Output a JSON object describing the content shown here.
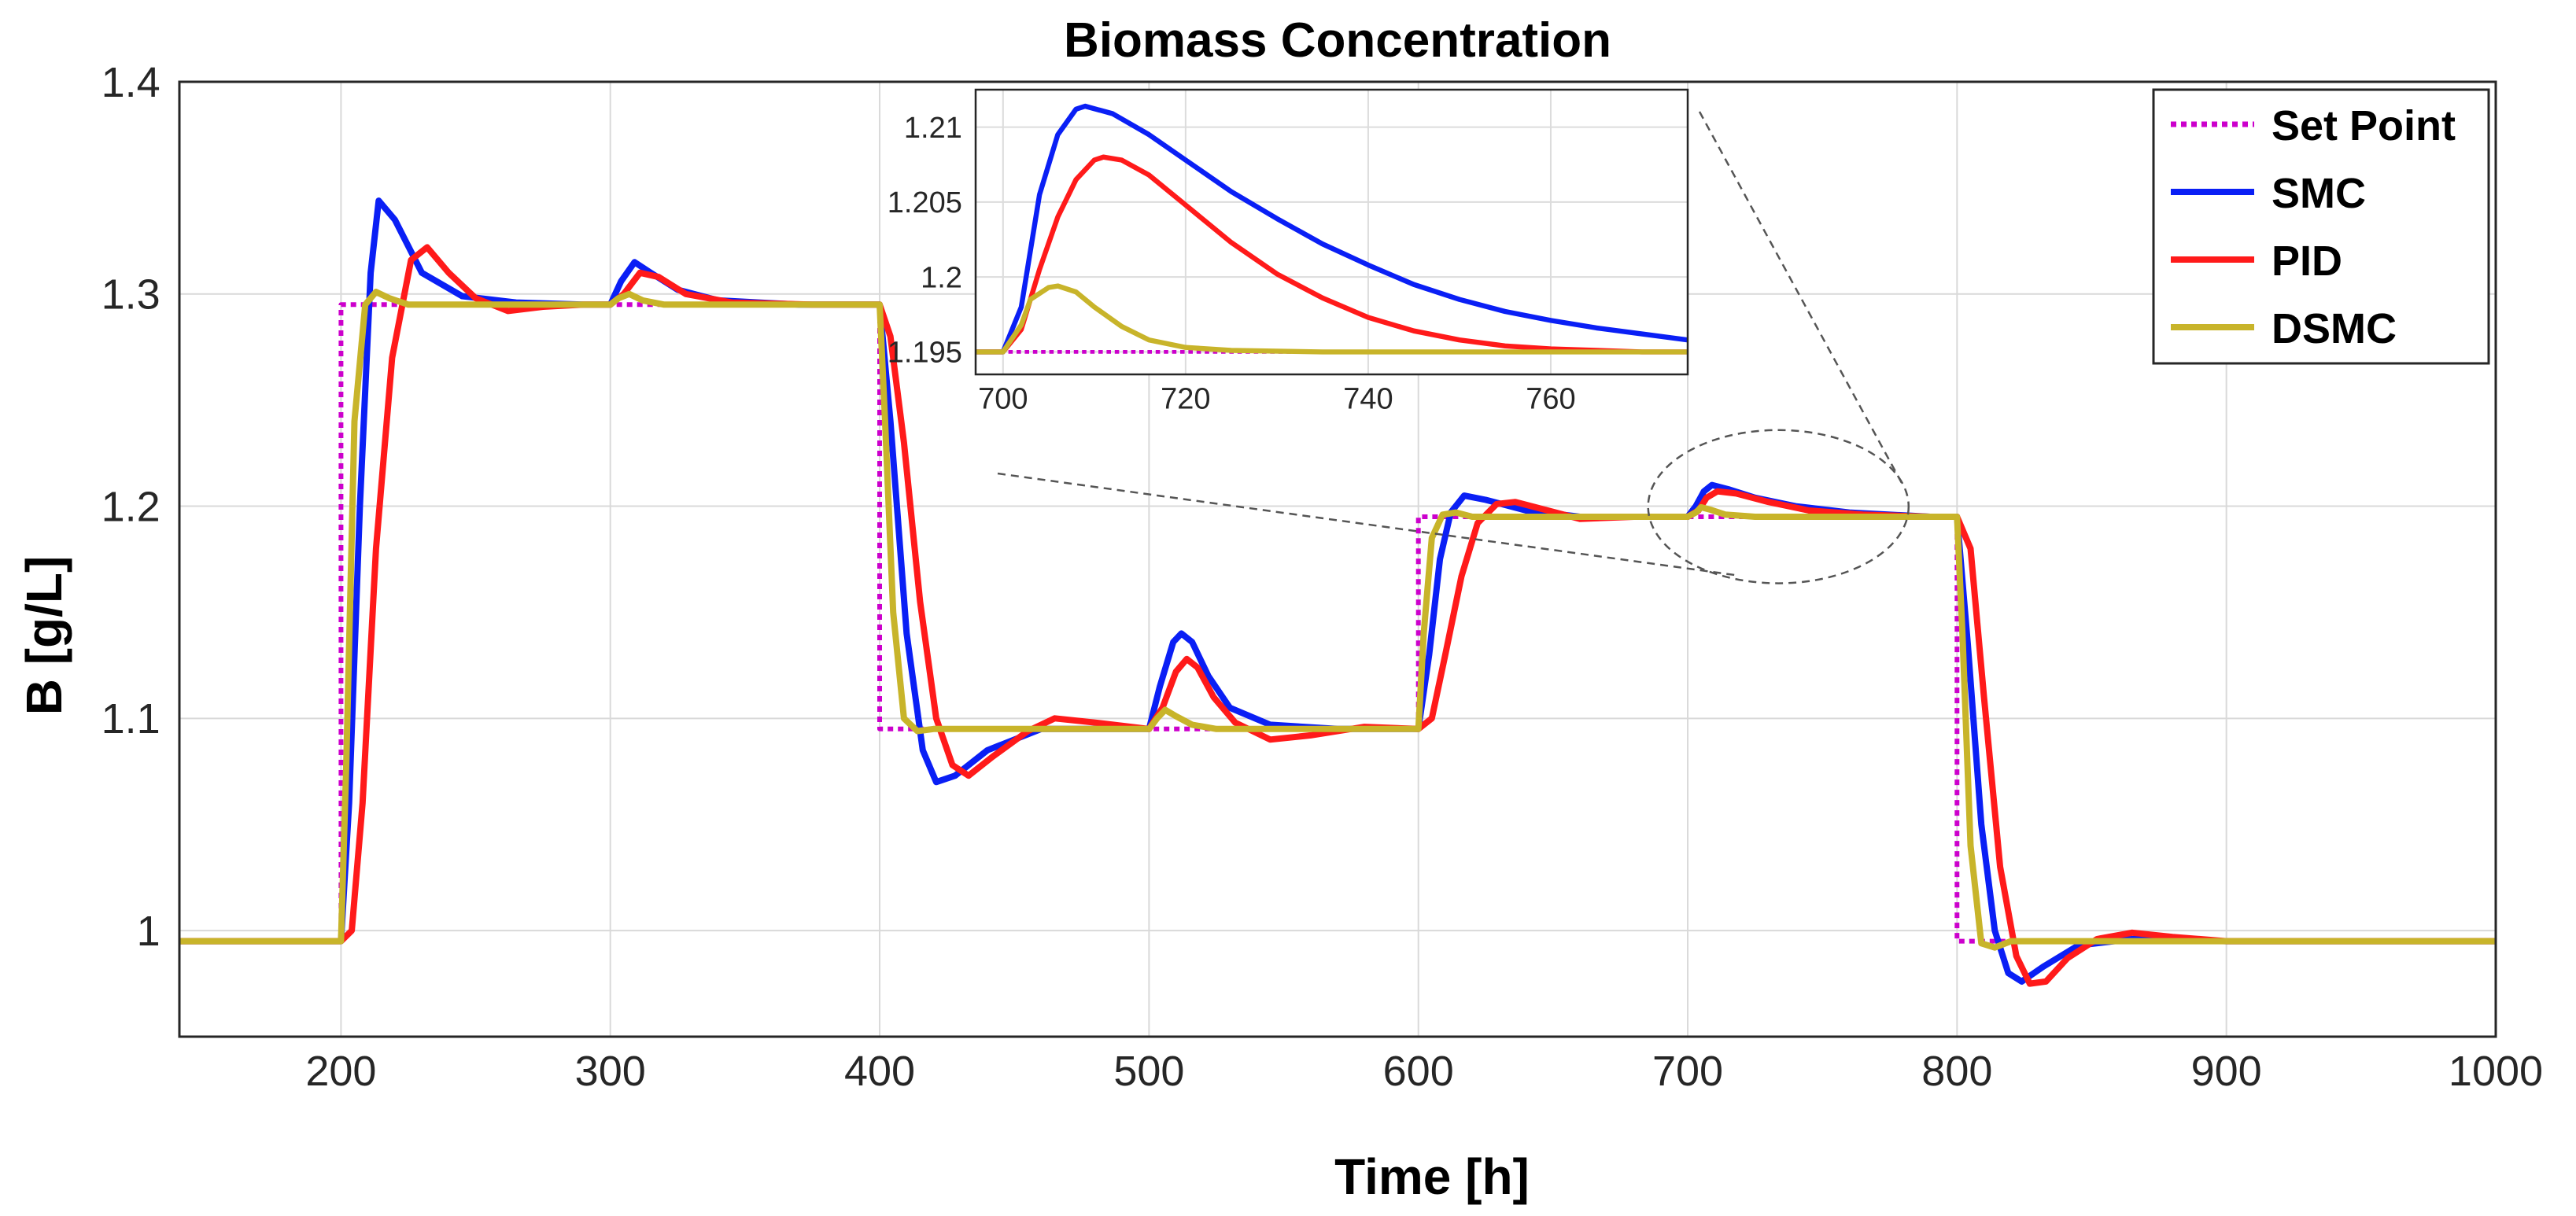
{
  "chart_data": {
    "type": "line",
    "title": "Biomass Concentration",
    "xlabel": "Time [h]",
    "ylabel": "B [g/L]",
    "xlim": [
      140,
      1000
    ],
    "ylim": [
      0.95,
      1.4
    ],
    "xticks": [
      200,
      300,
      400,
      500,
      600,
      700,
      800,
      900,
      1000
    ],
    "xtick_labels": [
      "200",
      "300",
      "400",
      "500",
      "600",
      "700",
      "800",
      "900",
      "1000"
    ],
    "yticks": [
      1.0,
      1.1,
      1.2,
      1.3,
      1.4
    ],
    "ytick_labels": [
      "1",
      "1.1",
      "1.2",
      "1.3",
      "1.4"
    ],
    "grid": true,
    "legend_position": "top-right",
    "colors": {
      "set_point": "#cc00cc",
      "smc": "#0a1ff5",
      "pid": "#ff1a1a",
      "dsmc": "#c8b42a"
    },
    "series": [
      {
        "name": "Set Point",
        "style": "dotted",
        "color": "#cc00cc",
        "x": [
          140,
          200,
          200,
          400,
          400,
          600,
          600,
          800,
          800,
          1000
        ],
        "y": [
          0.995,
          0.995,
          1.295,
          1.295,
          1.095,
          1.095,
          1.195,
          1.195,
          0.995,
          0.995
        ]
      },
      {
        "name": "SMC",
        "color": "#0a1ff5",
        "x": [
          140,
          200,
          203,
          207,
          211,
          214,
          220,
          230,
          245,
          265,
          290,
          300,
          304,
          309,
          315,
          325,
          340,
          370,
          400,
          404,
          410,
          416,
          421,
          428,
          440,
          460,
          480,
          500,
          504,
          509,
          512,
          516,
          522,
          530,
          545,
          570,
          600,
          604,
          608,
          612,
          617,
          625,
          640,
          660,
          680,
          700,
          703,
          706,
          709,
          715,
          725,
          740,
          760,
          790,
          800,
          804,
          809,
          814,
          819,
          824,
          832,
          845,
          865,
          900,
          1000
        ],
        "y": [
          0.995,
          0.995,
          1.06,
          1.2,
          1.31,
          1.344,
          1.335,
          1.31,
          1.299,
          1.296,
          1.295,
          1.295,
          1.306,
          1.315,
          1.31,
          1.302,
          1.297,
          1.295,
          1.295,
          1.24,
          1.14,
          1.085,
          1.07,
          1.073,
          1.085,
          1.095,
          1.095,
          1.095,
          1.115,
          1.136,
          1.14,
          1.136,
          1.12,
          1.105,
          1.097,
          1.095,
          1.095,
          1.13,
          1.175,
          1.197,
          1.205,
          1.203,
          1.198,
          1.195,
          1.195,
          1.195,
          1.2,
          1.207,
          1.21,
          1.208,
          1.204,
          1.2,
          1.197,
          1.195,
          1.195,
          1.135,
          1.05,
          1.0,
          0.98,
          0.976,
          0.983,
          0.993,
          0.996,
          0.995,
          0.995
        ]
      },
      {
        "name": "PID",
        "color": "#ff1a1a",
        "x": [
          140,
          200,
          204,
          208,
          213,
          219,
          226,
          232,
          240,
          250,
          262,
          275,
          290,
          300,
          305,
          311,
          318,
          328,
          345,
          375,
          400,
          404,
          409,
          415,
          421,
          427,
          433,
          442,
          455,
          465,
          480,
          500,
          505,
          510,
          514,
          518,
          524,
          532,
          545,
          560,
          580,
          600,
          605,
          610,
          616,
          622,
          629,
          636,
          645,
          660,
          680,
          700,
          704,
          707,
          711,
          718,
          730,
          745,
          765,
          790,
          800,
          805,
          810,
          816,
          822,
          827,
          833,
          841,
          852,
          865,
          880,
          900,
          1000
        ],
        "y": [
          0.995,
          0.995,
          1.0,
          1.06,
          1.18,
          1.27,
          1.316,
          1.322,
          1.31,
          1.298,
          1.292,
          1.294,
          1.295,
          1.295,
          1.3,
          1.31,
          1.308,
          1.3,
          1.296,
          1.295,
          1.295,
          1.28,
          1.23,
          1.155,
          1.1,
          1.078,
          1.073,
          1.082,
          1.094,
          1.1,
          1.098,
          1.095,
          1.105,
          1.122,
          1.128,
          1.124,
          1.11,
          1.098,
          1.09,
          1.092,
          1.096,
          1.095,
          1.1,
          1.13,
          1.167,
          1.192,
          1.201,
          1.202,
          1.199,
          1.194,
          1.195,
          1.195,
          1.198,
          1.204,
          1.207,
          1.206,
          1.202,
          1.198,
          1.196,
          1.195,
          1.195,
          1.18,
          1.11,
          1.03,
          0.988,
          0.975,
          0.976,
          0.987,
          0.996,
          0.999,
          0.997,
          0.995,
          0.995
        ]
      },
      {
        "name": "DSMC",
        "color": "#c8b42a",
        "x": [
          140,
          200,
          202,
          205,
          209,
          213,
          218,
          225,
          240,
          300,
          303,
          307,
          312,
          320,
          340,
          400,
          402,
          405,
          409,
          414,
          420,
          440,
          500,
          503,
          506,
          510,
          516,
          525,
          540,
          600,
          602,
          605,
          609,
          614,
          620,
          640,
          700,
          703,
          705,
          708,
          714,
          725,
          740,
          800,
          802,
          805,
          809,
          814,
          820,
          840,
          1000
        ],
        "y": [
          0.995,
          0.995,
          1.08,
          1.24,
          1.295,
          1.301,
          1.298,
          1.295,
          1.295,
          1.295,
          1.298,
          1.3,
          1.297,
          1.295,
          1.295,
          1.295,
          1.24,
          1.15,
          1.1,
          1.094,
          1.095,
          1.095,
          1.095,
          1.1,
          1.104,
          1.101,
          1.097,
          1.095,
          1.095,
          1.095,
          1.14,
          1.185,
          1.196,
          1.197,
          1.195,
          1.195,
          1.195,
          1.197,
          1.1995,
          1.1985,
          1.196,
          1.195,
          1.195,
          1.195,
          1.14,
          1.04,
          0.994,
          0.992,
          0.995,
          0.995,
          0.995
        ]
      }
    ],
    "inset": {
      "xlim": [
        697,
        775
      ],
      "ylim": [
        1.1935,
        1.2125
      ],
      "xticks": [
        700,
        720,
        740,
        760
      ],
      "xtick_labels": [
        "700",
        "720",
        "740",
        "760"
      ],
      "yticks": [
        1.195,
        1.2,
        1.205,
        1.21
      ],
      "ytick_labels": [
        "1.195",
        "1.2",
        "1.205",
        "1.21"
      ],
      "grid": true,
      "series": [
        {
          "name": "Set Point",
          "style": "dotted",
          "color": "#cc00cc",
          "x": [
            697,
            775
          ],
          "y": [
            1.195,
            1.195
          ]
        },
        {
          "name": "SMC",
          "color": "#0a1ff5",
          "x": [
            697,
            700,
            702,
            704,
            706,
            708,
            709,
            712,
            716,
            720,
            725,
            730,
            735,
            740,
            745,
            750,
            755,
            760,
            765,
            770,
            775
          ],
          "y": [
            1.195,
            1.195,
            1.198,
            1.2055,
            1.2095,
            1.2112,
            1.2114,
            1.2109,
            1.2095,
            1.2078,
            1.2057,
            1.2039,
            1.2022,
            1.2008,
            1.1995,
            1.1985,
            1.1977,
            1.1971,
            1.1966,
            1.1962,
            1.1958
          ]
        },
        {
          "name": "PID",
          "color": "#ff1a1a",
          "x": [
            697,
            700,
            702,
            704,
            706,
            708,
            710,
            711,
            713,
            716,
            720,
            725,
            730,
            735,
            740,
            745,
            750,
            755,
            760,
            765,
            770,
            775
          ],
          "y": [
            1.195,
            1.195,
            1.1965,
            1.2005,
            1.204,
            1.2065,
            1.2078,
            1.208,
            1.2078,
            1.2068,
            1.2048,
            1.2023,
            1.2002,
            1.1986,
            1.1973,
            1.1964,
            1.1958,
            1.1954,
            1.1952,
            1.1951,
            1.195,
            1.195
          ]
        },
        {
          "name": "DSMC",
          "color": "#c8b42a",
          "x": [
            697,
            700,
            702,
            703,
            705,
            706,
            708,
            710,
            713,
            716,
            720,
            725,
            735,
            775
          ],
          "y": [
            1.195,
            1.195,
            1.1968,
            1.1985,
            1.1993,
            1.1994,
            1.199,
            1.198,
            1.1967,
            1.1958,
            1.1953,
            1.1951,
            1.195,
            1.195
          ]
        }
      ]
    },
    "legend": [
      "Set Point",
      "SMC",
      "PID",
      "DSMC"
    ]
  }
}
